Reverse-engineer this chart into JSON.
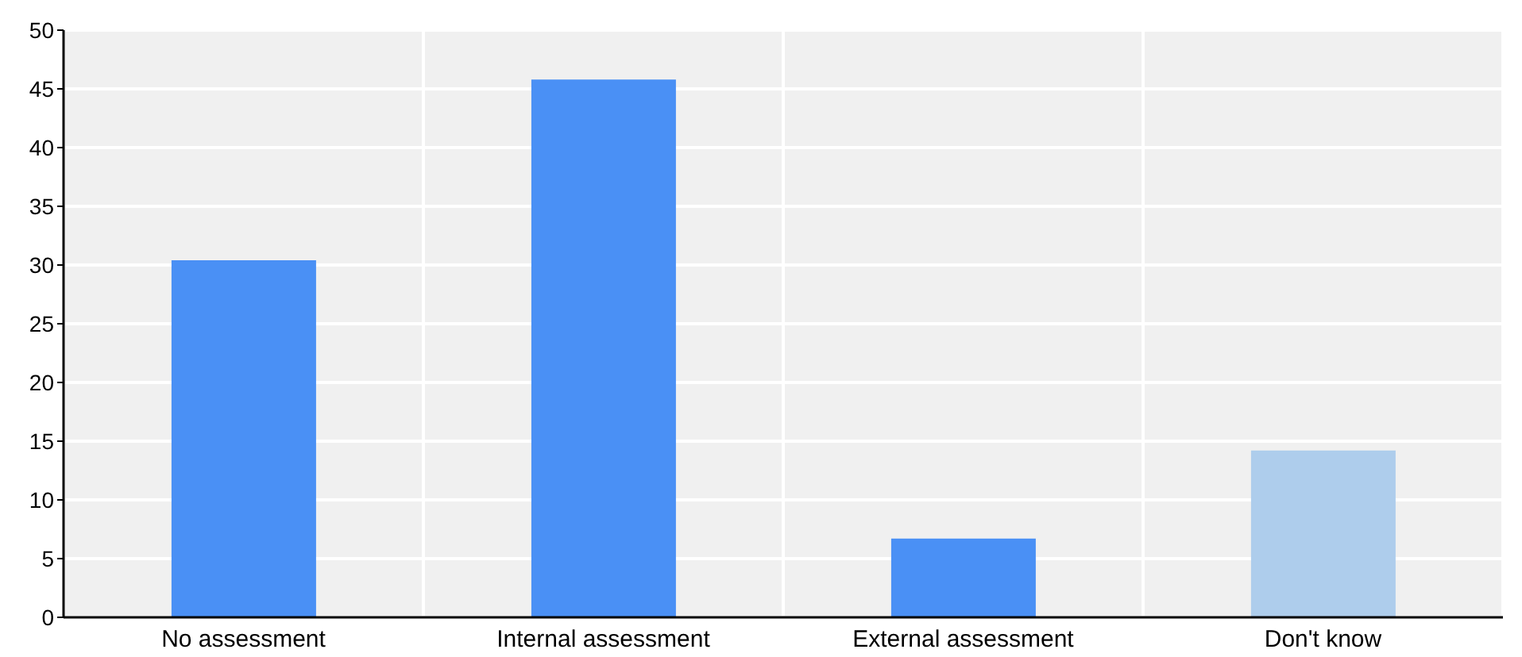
{
  "chart_data": {
    "type": "bar",
    "categories": [
      "No assessment",
      "Internal assessment",
      "External assessment",
      "Don't know"
    ],
    "values": [
      30.4,
      45.8,
      6.7,
      14.2
    ],
    "colors": [
      "#4a90f5",
      "#4a90f5",
      "#4a90f5",
      "#aecdec"
    ],
    "ylim": [
      0,
      50
    ],
    "yticks": [
      0,
      5,
      10,
      15,
      20,
      25,
      30,
      35,
      40,
      45,
      50
    ],
    "grid": true
  }
}
